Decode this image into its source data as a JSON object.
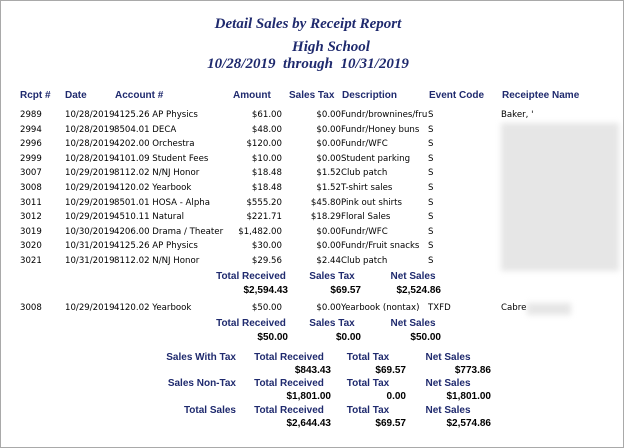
{
  "header": {
    "title": "Detail Sales by Receipt Report",
    "school": "High School",
    "date_range": "10/28/2019  through  10/31/2019"
  },
  "table": {
    "columns": [
      "Rcpt #",
      "Date",
      "Account #",
      "Amount",
      "Sales Tax",
      "Description",
      "Event Code",
      "Receiptee Name"
    ],
    "groups": [
      {
        "rows": [
          {
            "rcpt": "2989",
            "date": "10/28/2019",
            "account": "4125.26 AP Physics",
            "amount": "$61.00",
            "tax": "$0.00",
            "description": "Fundr/brownines/fru",
            "event": "S",
            "receiptee": "Baker, '"
          },
          {
            "rcpt": "2994",
            "date": "10/28/2019",
            "account": "8504.01 DECA",
            "amount": "$48.00",
            "tax": "$0.00",
            "description": "Fundr/Honey buns",
            "event": "S"
          },
          {
            "rcpt": "2996",
            "date": "10/28/2019",
            "account": "4202.00 Orchestra",
            "amount": "$120.00",
            "tax": "$0.00",
            "description": "Fundr/WFC",
            "event": "S"
          },
          {
            "rcpt": "2999",
            "date": "10/28/2019",
            "account": "4101.09 Student Fees",
            "amount": "$10.00",
            "tax": "$0.00",
            "description": "Student parking",
            "event": "S"
          },
          {
            "rcpt": "3007",
            "date": "10/29/2019",
            "account": "8112.02 N/NJ Honor",
            "amount": "$18.48",
            "tax": "$1.52",
            "description": "Club patch",
            "event": "S"
          },
          {
            "rcpt": "3008",
            "date": "10/29/2019",
            "account": "4120.02 Yearbook",
            "amount": "$18.48",
            "tax": "$1.52",
            "description": "T-shirt sales",
            "event": "S"
          },
          {
            "rcpt": "3011",
            "date": "10/29/2019",
            "account": "8501.01 HOSA - Alpha",
            "amount": "$555.20",
            "tax": "$45.80",
            "description": "Pink out shirts",
            "event": "S"
          },
          {
            "rcpt": "3012",
            "date": "10/29/2019",
            "account": "4510.11 Natural",
            "amount": "$221.71",
            "tax": "$18.29",
            "description": "Floral Sales",
            "event": "S"
          },
          {
            "rcpt": "3019",
            "date": "10/30/2019",
            "account": "4206.00 Drama / Theater",
            "amount": "$1,482.00",
            "tax": "$0.00",
            "description": "Fundr/WFC",
            "event": "S"
          },
          {
            "rcpt": "3020",
            "date": "10/31/2019",
            "account": "4125.26 AP Physics",
            "amount": "$30.00",
            "tax": "$0.00",
            "description": "Fundr/Fruit snacks",
            "event": "S"
          },
          {
            "rcpt": "3021",
            "date": "10/31/2019",
            "account": "8112.02 N/NJ Honor",
            "amount": "$29.56",
            "tax": "$2.44",
            "description": "Club patch",
            "event": "S"
          }
        ],
        "totals": {
          "labels": [
            "Total Received",
            "Sales Tax",
            "Net Sales"
          ],
          "values": [
            "$2,594.43",
            "$69.57",
            "$2,524.86"
          ]
        }
      },
      {
        "rows": [
          {
            "rcpt": "3008",
            "date": "10/29/2019",
            "account": "4120.02 Yearbook",
            "amount": "$50.00",
            "tax": "$0.00",
            "description": "Yearbook (nontax)",
            "event": "TXFD",
            "receiptee": "Cabre"
          }
        ],
        "totals": {
          "labels": [
            "Total Received",
            "Sales Tax",
            "Net Sales"
          ],
          "values": [
            "$50.00",
            "$0.00",
            "$50.00"
          ]
        }
      }
    ]
  },
  "summary": {
    "rows": [
      {
        "label": "Sales With Tax",
        "headers": [
          "Total Received",
          "Total Tax",
          "Net Sales"
        ],
        "values": [
          "$843.43",
          "$69.57",
          "$773.86"
        ]
      },
      {
        "label": "Sales Non-Tax",
        "headers": [
          "Total Received",
          "Total Tax",
          "Net Sales"
        ],
        "values": [
          "$1,801.00",
          "0.00",
          "$1,801.00"
        ]
      },
      {
        "label": "Total Sales",
        "headers": [
          "Total Received",
          "Total Tax",
          "Net Sales"
        ],
        "values": [
          "$2,644.43",
          "$69.57",
          "$2,574.86"
        ]
      }
    ]
  }
}
